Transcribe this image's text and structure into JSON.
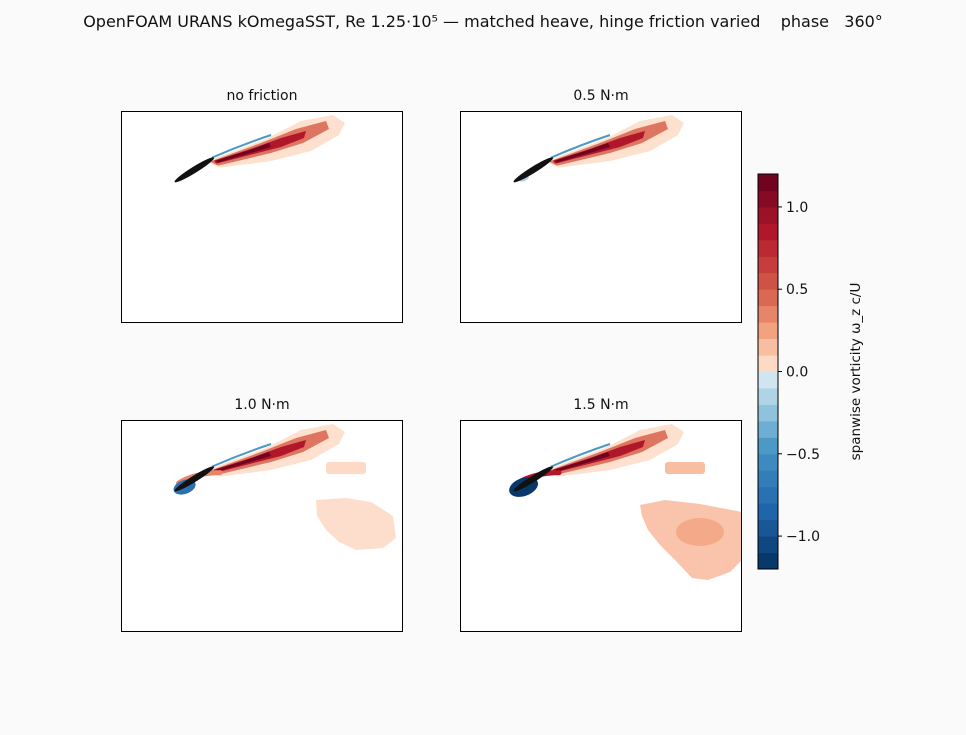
{
  "figure": {
    "title": "OpenFOAM URANS kOmegaSST, Re 1.25·10⁵ — matched heave, hinge friction varied    phase   360°"
  },
  "chart_data": {
    "type": "heatmap",
    "quantity": "spanwise vorticity",
    "colormap": "RdBu_r",
    "colorbar": {
      "label": "spanwise vorticity ω_z c/U",
      "range": [
        -1.2,
        1.2
      ],
      "levels": 24,
      "ticks": [
        -1.0,
        -0.5,
        0.0,
        0.5,
        1.0
      ],
      "tick_labels": [
        "−1.0",
        "−0.5",
        "0.0",
        "0.5",
        "1.0"
      ],
      "neutral_color": "#ffffff",
      "positive_color": "#67001f",
      "negative_color": "#053061"
    },
    "panels": [
      {
        "title": "no friction",
        "friction": 0.0,
        "leading_vortex": 0.0,
        "lower_wake": 0.0,
        "far_patch": 0.0,
        "far_patch_max": 0.0,
        "stray_vortex": 0.0
      },
      {
        "title": "0.5 N·m",
        "friction": 0.5,
        "leading_vortex": 0.15,
        "lower_wake": 0.0,
        "far_patch": 0.0,
        "far_patch_max": 0.0,
        "stray_vortex": 0.0
      },
      {
        "title": "1.0 N·m",
        "friction": 1.0,
        "leading_vortex": 0.75,
        "lower_wake": 0.35,
        "far_patch": 0.05,
        "far_patch_max": 0.05,
        "stray_vortex": 0.05
      },
      {
        "title": "1.5 N·m",
        "friction": 1.5,
        "leading_vortex": 1.1,
        "lower_wake": 0.8,
        "far_patch": 0.1,
        "far_patch_max": 0.2,
        "stray_vortex": 0.1
      }
    ]
  }
}
